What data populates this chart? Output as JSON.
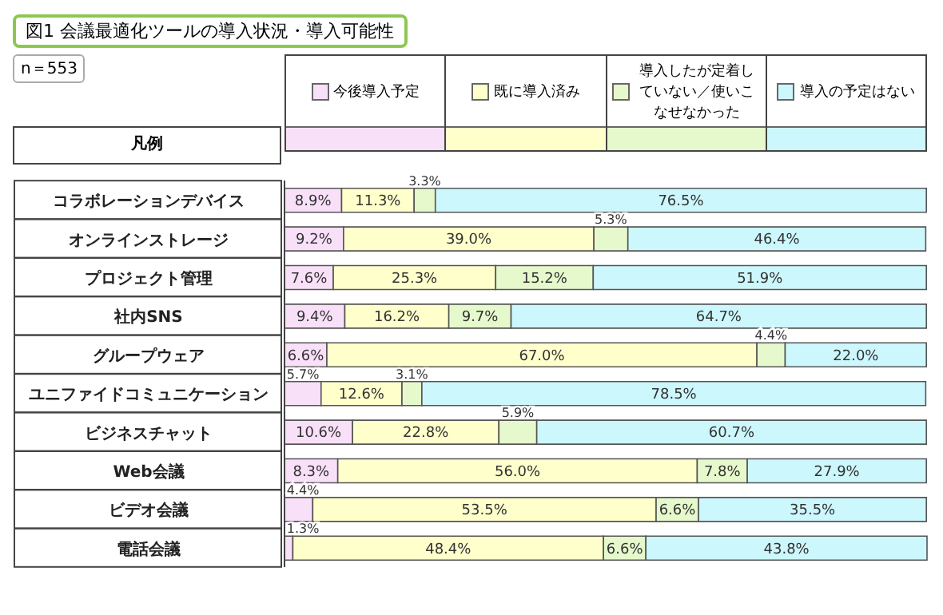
{
  "chart_data": {
    "type": "bar",
    "orientation": "horizontal",
    "stacked": true,
    "title": "図1 会議最適化ツールの導入状況・導入可能性",
    "annotations": [
      "n＝553"
    ],
    "legend_title": "凡例",
    "legend": "top",
    "categories": [
      "コラボレーションデバイス",
      "オンラインストレージ",
      "プロジェクト管理",
      "社内SNS",
      "グループウェア",
      "ユニファイドコミュニケーション",
      "ビジネスチャット",
      "Web会議",
      "ビデオ会議",
      "電話会議"
    ],
    "series": [
      {
        "name": "今後導入予定",
        "color": "#f9e0f9",
        "values": [
          8.9,
          9.2,
          7.6,
          9.4,
          6.6,
          5.7,
          10.6,
          8.3,
          4.4,
          1.3
        ],
        "value_labels": [
          "8.9%",
          "9.2%",
          "7.6%",
          "9.4%",
          "6.6%",
          "5.7%",
          "10.6%",
          "8.3%",
          "4.4%",
          "1.3%"
        ]
      },
      {
        "name": "既に導入済み",
        "color": "#ffffcc",
        "values": [
          11.3,
          39.0,
          25.3,
          16.2,
          67.0,
          12.6,
          22.8,
          56.0,
          53.5,
          48.4
        ],
        "value_labels": [
          "11.3%",
          "39.0%",
          "25.3%",
          "16.2%",
          "67.0%",
          "12.6%",
          "22.8%",
          "56.0%",
          "53.5%",
          "48.4%"
        ]
      },
      {
        "name": "導入したが定着していない／使いこなせなかった",
        "color": "#e6f9cc",
        "values": [
          3.3,
          5.3,
          15.2,
          9.7,
          4.4,
          3.1,
          5.9,
          7.8,
          6.6,
          6.6
        ],
        "value_labels": [
          "3.3%",
          "5.3%",
          "15.2%",
          "9.7%",
          "4.4%",
          "3.1%",
          "5.9%",
          "7.8%",
          "6.6%",
          "6.6%"
        ]
      },
      {
        "name": "導入の予定はない",
        "color": "#ccf7fc",
        "values": [
          76.5,
          46.4,
          51.9,
          64.7,
          22.0,
          78.5,
          60.7,
          27.9,
          35.5,
          43.8
        ],
        "value_labels": [
          "76.5%",
          "46.4%",
          "51.9%",
          "64.7%",
          "22.0%",
          "78.5%",
          "60.7%",
          "27.9%",
          "35.5%",
          "43.8%"
        ]
      }
    ]
  }
}
